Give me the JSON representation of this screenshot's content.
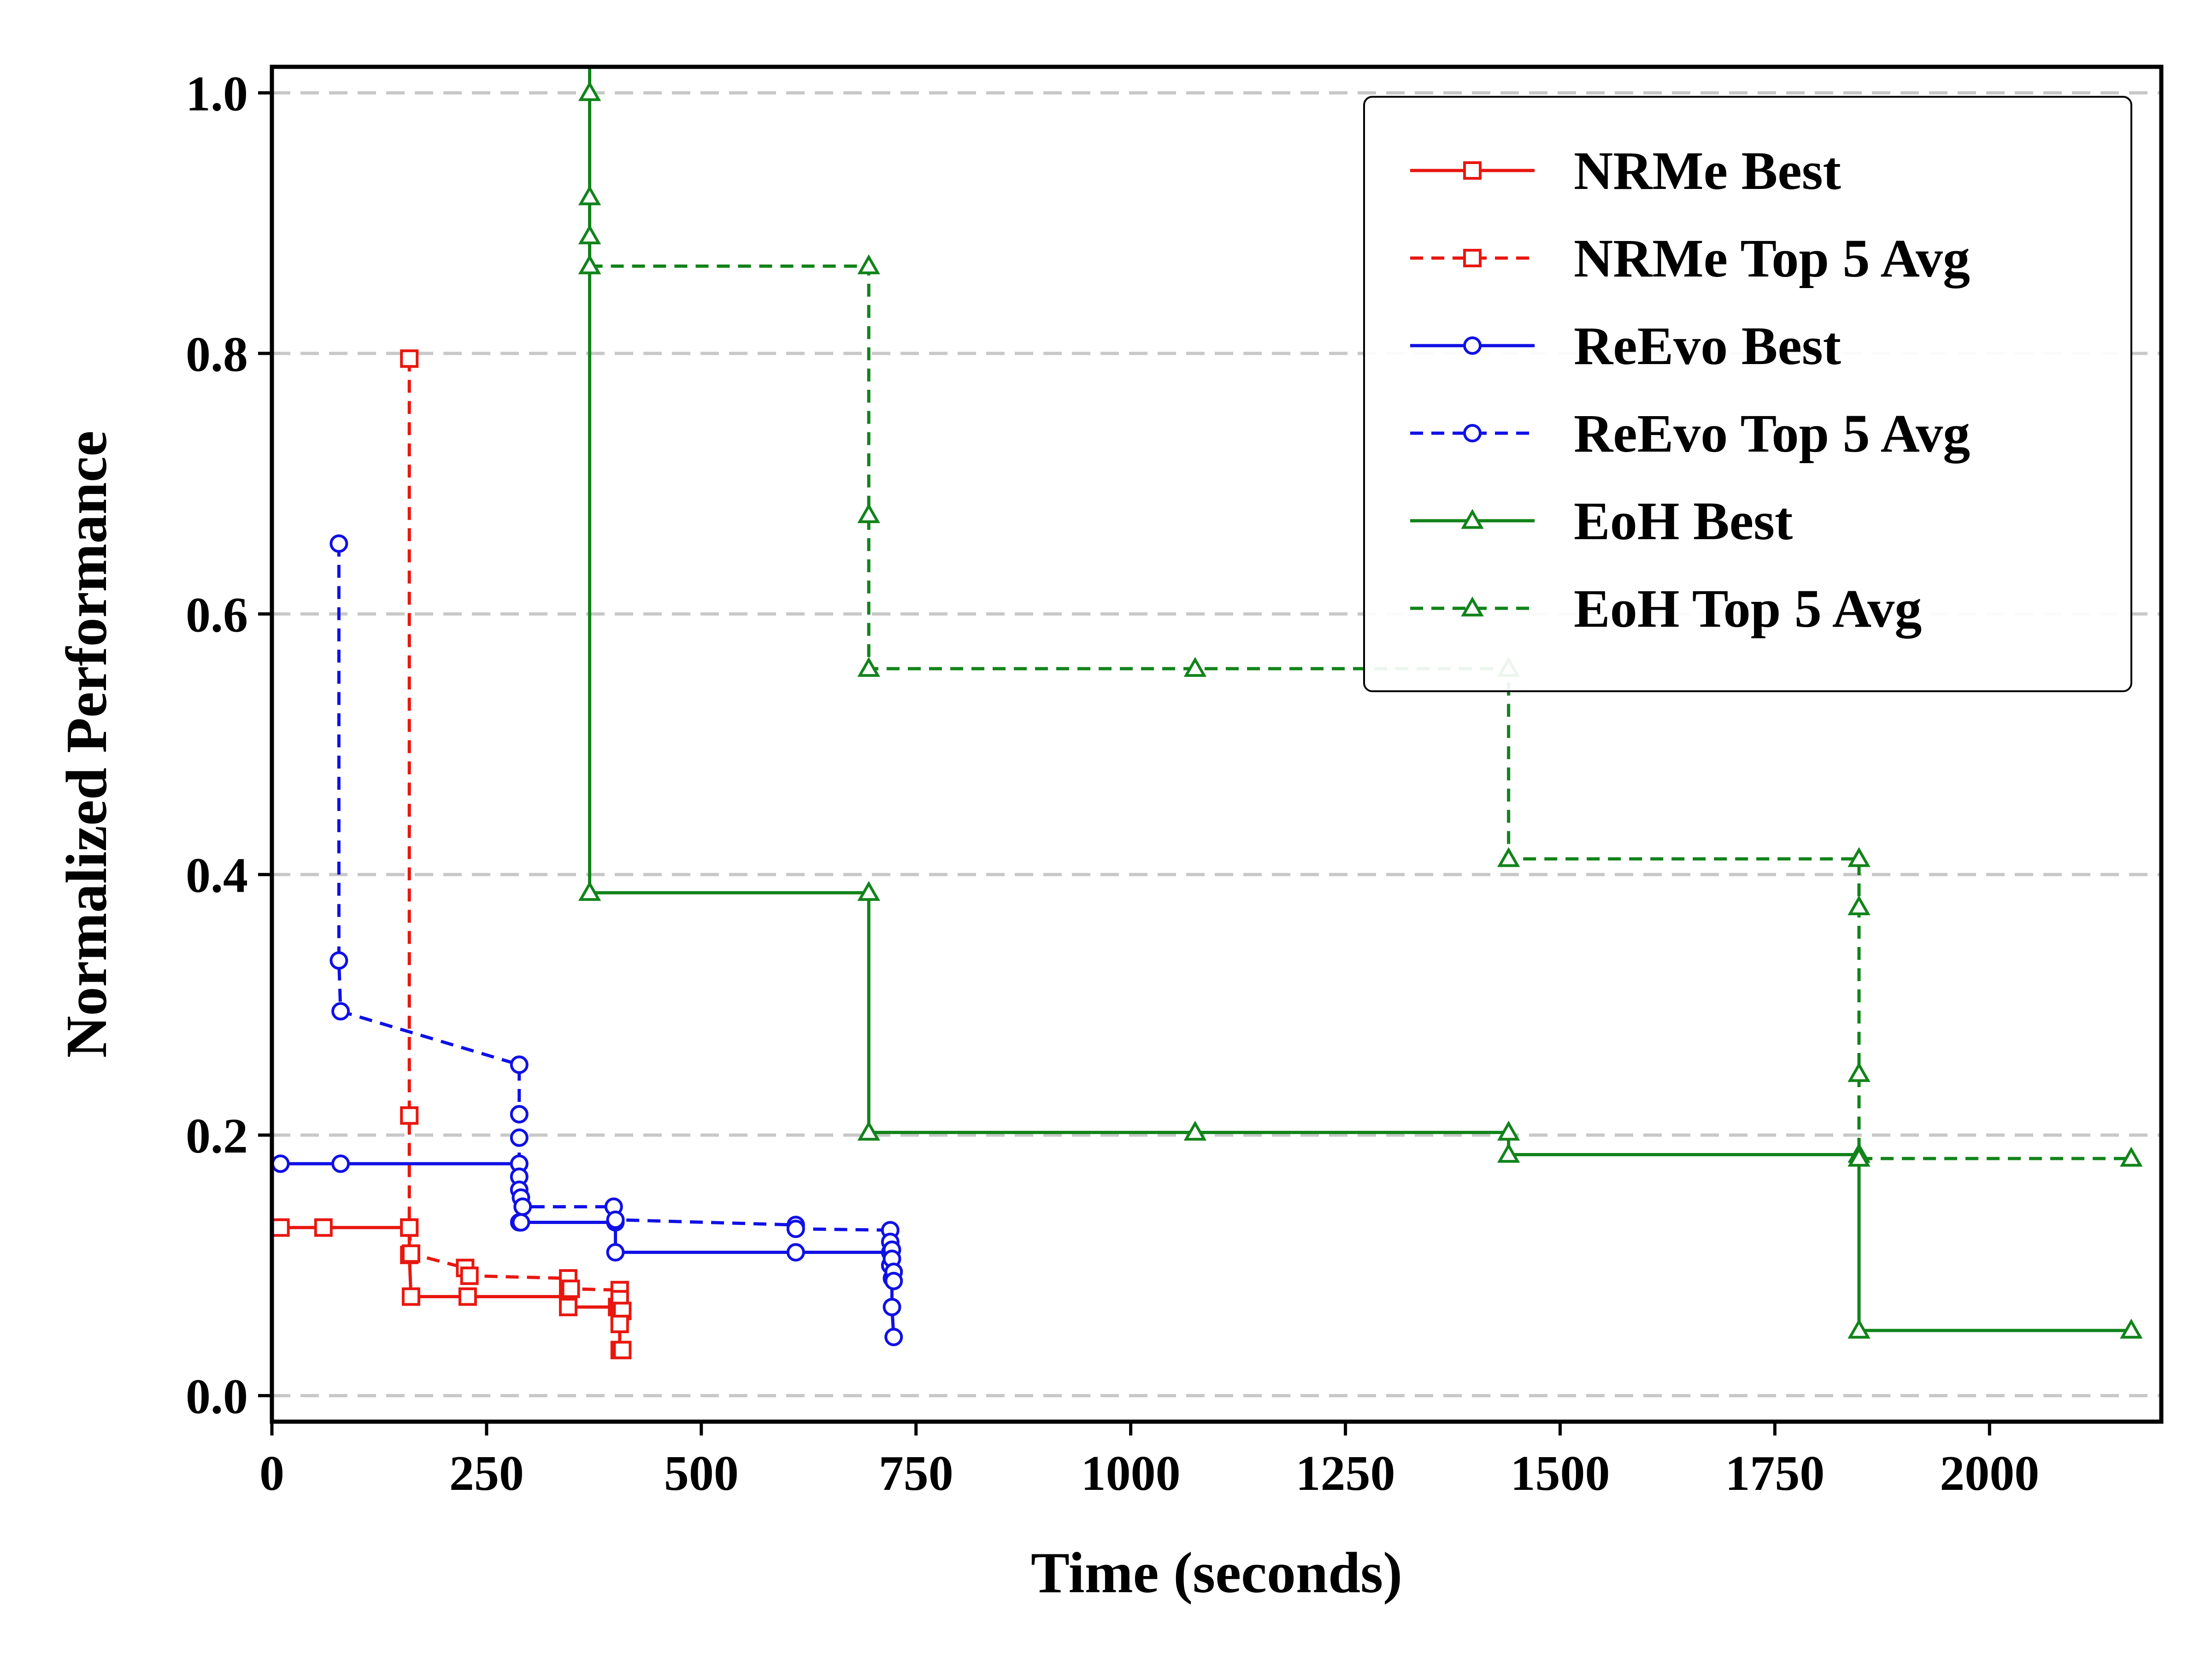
{
  "chart_data": {
    "type": "line",
    "xlabel": "Time (seconds)",
    "ylabel": "Normalized Performance",
    "xlim": [
      0,
      2200
    ],
    "ylim": [
      -0.02,
      1.02
    ],
    "xticks": [
      0,
      250,
      500,
      750,
      1000,
      1250,
      1500,
      1750,
      2000
    ],
    "yticks": [
      0.0,
      0.2,
      0.4,
      0.6,
      0.8,
      1.0
    ],
    "ytick_labels": [
      "0.0",
      "0.2",
      "0.4",
      "0.6",
      "0.8",
      "1.0"
    ],
    "grid": "horizontal dashed",
    "legend_position": "top-right",
    "series": [
      {
        "name": "NRMe Best",
        "color": "#e8170f",
        "dash": "solid",
        "marker": "square",
        "points": [
          [
            10,
            0.129
          ],
          [
            60,
            0.129
          ],
          [
            160,
            0.129
          ],
          [
            160,
            0.108
          ],
          [
            162,
            0.076
          ],
          [
            228,
            0.076
          ],
          [
            345,
            0.076
          ],
          [
            345,
            0.068
          ],
          [
            402,
            0.068
          ],
          [
            405,
            0.062
          ],
          [
            405,
            0.035
          ],
          [
            408,
            0.035
          ]
        ]
      },
      {
        "name": "NRMe Top 5 Avg",
        "color": "#e8170f",
        "dash": "dashed",
        "marker": "square",
        "points": [
          [
            160,
            0.796
          ],
          [
            160,
            0.215
          ],
          [
            160,
            0.129
          ],
          [
            162,
            0.109
          ],
          [
            225,
            0.098
          ],
          [
            230,
            0.092
          ],
          [
            345,
            0.09
          ],
          [
            348,
            0.082
          ],
          [
            405,
            0.081
          ],
          [
            405,
            0.074
          ],
          [
            408,
            0.065
          ],
          [
            405,
            0.055
          ]
        ]
      },
      {
        "name": "ReEvo Best",
        "color": "#1010e6",
        "dash": "solid",
        "marker": "circle",
        "points": [
          [
            10,
            0.178
          ],
          [
            80,
            0.178
          ],
          [
            288,
            0.178
          ],
          [
            288,
            0.133
          ],
          [
            290,
            0.133
          ],
          [
            400,
            0.133
          ],
          [
            400,
            0.11
          ],
          [
            610,
            0.11
          ],
          [
            720,
            0.11
          ],
          [
            720,
            0.1
          ],
          [
            722,
            0.09
          ],
          [
            722,
            0.068
          ],
          [
            724,
            0.045
          ]
        ]
      },
      {
        "name": "ReEvo Top 5 Avg",
        "color": "#1010e6",
        "dash": "dashed",
        "marker": "circle",
        "points": [
          [
            78,
            0.654
          ],
          [
            78,
            0.334
          ],
          [
            80,
            0.295
          ],
          [
            288,
            0.254
          ],
          [
            288,
            0.216
          ],
          [
            288,
            0.198
          ],
          [
            288,
            0.168
          ],
          [
            288,
            0.158
          ],
          [
            290,
            0.152
          ],
          [
            292,
            0.145
          ],
          [
            398,
            0.145
          ],
          [
            400,
            0.135
          ],
          [
            610,
            0.131
          ],
          [
            610,
            0.128
          ],
          [
            720,
            0.127
          ],
          [
            720,
            0.118
          ],
          [
            722,
            0.112
          ],
          [
            722,
            0.105
          ],
          [
            724,
            0.095
          ],
          [
            724,
            0.088
          ]
        ]
      },
      {
        "name": "EoH Best",
        "color": "#11831a",
        "dash": "solid",
        "marker": "triangle",
        "points": [
          [
            370,
            1.05
          ],
          [
            370,
            1.0
          ],
          [
            370,
            0.92
          ],
          [
            370,
            0.89
          ],
          [
            370,
            0.867
          ],
          [
            370,
            0.386
          ],
          [
            695,
            0.386
          ],
          [
            695,
            0.202
          ],
          [
            1075,
            0.202
          ],
          [
            1440,
            0.202
          ],
          [
            1440,
            0.185
          ],
          [
            1848,
            0.185
          ],
          [
            1848,
            0.05
          ],
          [
            2165,
            0.05
          ]
        ]
      },
      {
        "name": "EoH Top 5 Avg",
        "color": "#11831a",
        "dash": "dashed",
        "marker": "triangle",
        "points": [
          [
            370,
            0.867
          ],
          [
            695,
            0.867
          ],
          [
            695,
            0.676
          ],
          [
            695,
            0.558
          ],
          [
            1075,
            0.558
          ],
          [
            1440,
            0.558
          ],
          [
            1440,
            0.412
          ],
          [
            1848,
            0.412
          ],
          [
            1848,
            0.375
          ],
          [
            1848,
            0.247
          ],
          [
            1848,
            0.182
          ],
          [
            2165,
            0.182
          ]
        ]
      }
    ]
  }
}
